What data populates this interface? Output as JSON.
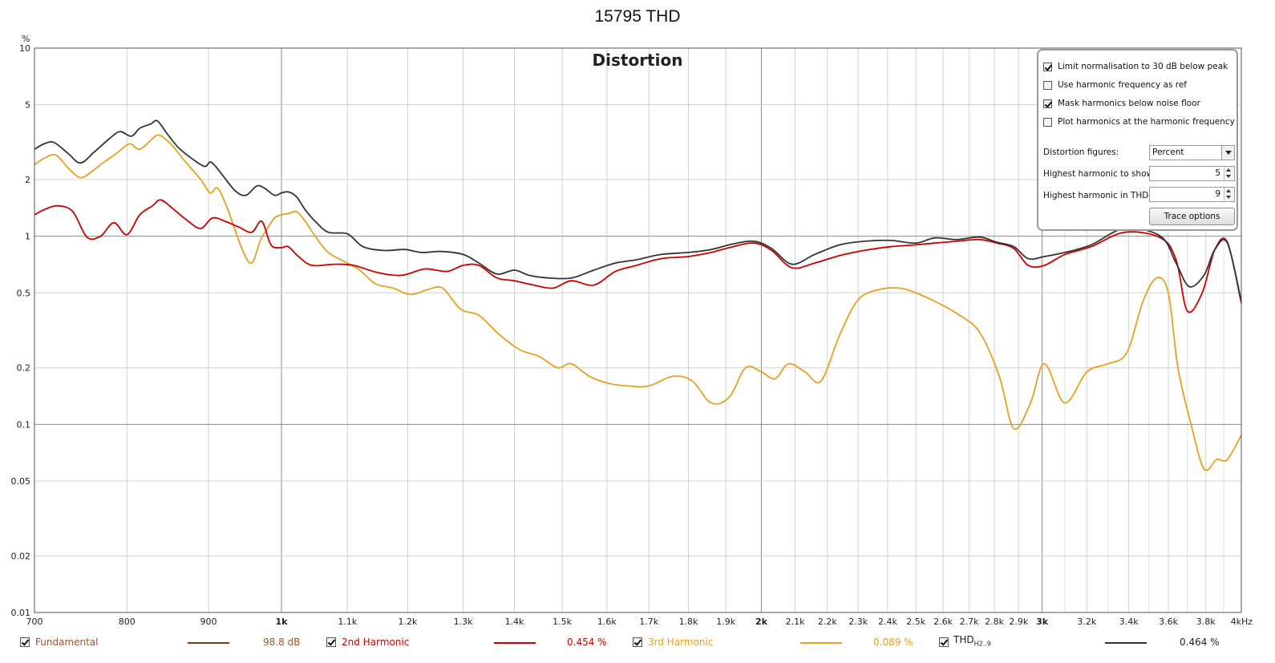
{
  "title": "15795 THD",
  "plot_title": "Distortion",
  "options": {
    "checkboxes": [
      {
        "label": "Limit normalisation to 30 dB below peak",
        "checked": true
      },
      {
        "label": "Use harmonic frequency as ref",
        "checked": false
      },
      {
        "label": "Mask harmonics below noise floor",
        "checked": true
      },
      {
        "label": "Plot harmonics at the harmonic frequency",
        "checked": false
      }
    ],
    "distortion_figures_label": "Distortion figures:",
    "distortion_figures_value": "Percent",
    "highest_harmonic_show_label": "Highest harmonic to show:",
    "highest_harmonic_show_value": "5",
    "highest_harmonic_thd_label": "Highest harmonic in THD:",
    "highest_harmonic_thd_value": "9",
    "trace_options_label": "Trace options"
  },
  "legend": [
    {
      "name": "Fundamental",
      "value": "98.8 dB",
      "color": "#7a3a1c",
      "name_color": "#a0522d",
      "checked": true
    },
    {
      "name": "2nd Harmonic",
      "value": "0.454 %",
      "color": "#cc0000",
      "name_color": "#cc0000",
      "checked": true
    },
    {
      "name": "3rd Harmonic",
      "value": "0.089 %",
      "color": "#e8a020",
      "name_color": "#e8a020",
      "checked": true
    },
    {
      "name": "THD",
      "name_sub": "H2..9",
      "value": "0.464 %",
      "color": "#333333",
      "name_color": "#222222",
      "checked": true
    }
  ],
  "chart_data": {
    "type": "line",
    "title": "Distortion",
    "x_scale": "log",
    "y_scale": "log",
    "xlim": [
      700,
      4000
    ],
    "ylim": [
      0.01,
      10
    ],
    "yunit": "%",
    "xunit": "kHz",
    "grid": true,
    "x_ticks": [
      {
        "value": 700,
        "label": "700",
        "major": false
      },
      {
        "value": 800,
        "label": "800",
        "major": false
      },
      {
        "value": 900,
        "label": "900",
        "major": false
      },
      {
        "value": 1000,
        "label": "1k",
        "major": true
      },
      {
        "value": 1100,
        "label": "1.1k",
        "major": false
      },
      {
        "value": 1200,
        "label": "1.2k",
        "major": false
      },
      {
        "value": 1300,
        "label": "1.3k",
        "major": false
      },
      {
        "value": 1400,
        "label": "1.4k",
        "major": false
      },
      {
        "value": 1500,
        "label": "1.5k",
        "major": false
      },
      {
        "value": 1600,
        "label": "1.6k",
        "major": false
      },
      {
        "value": 1700,
        "label": "1.7k",
        "major": false
      },
      {
        "value": 1800,
        "label": "1.8k",
        "major": false
      },
      {
        "value": 1900,
        "label": "1.9k",
        "major": false
      },
      {
        "value": 2000,
        "label": "2k",
        "major": true
      },
      {
        "value": 2100,
        "label": "2.1k",
        "major": false
      },
      {
        "value": 2200,
        "label": "2.2k",
        "major": false
      },
      {
        "value": 2300,
        "label": "2.3k",
        "major": false
      },
      {
        "value": 2400,
        "label": "2.4k",
        "major": false
      },
      {
        "value": 2500,
        "label": "2.5k",
        "major": false
      },
      {
        "value": 2600,
        "label": "2.6k",
        "major": false
      },
      {
        "value": 2700,
        "label": "2.7k",
        "major": false
      },
      {
        "value": 2800,
        "label": "2.8k",
        "major": false
      },
      {
        "value": 2900,
        "label": "2.9k",
        "major": false
      },
      {
        "value": 3000,
        "label": "3k",
        "major": true
      },
      {
        "value": 3200,
        "label": "3.2k",
        "major": false
      },
      {
        "value": 3400,
        "label": "3.4k",
        "major": false
      },
      {
        "value": 3600,
        "label": "3.6k",
        "major": false
      },
      {
        "value": 3800,
        "label": "3.8k",
        "major": false
      },
      {
        "value": 4000,
        "label": "4kHz",
        "major": false
      }
    ],
    "y_ticks": [
      {
        "value": 10,
        "label": "10",
        "major": true
      },
      {
        "value": 5,
        "label": "5",
        "major": false
      },
      {
        "value": 2,
        "label": "2",
        "major": false
      },
      {
        "value": 1,
        "label": "1",
        "major": true
      },
      {
        "value": 0.5,
        "label": "0.5",
        "major": false
      },
      {
        "value": 0.2,
        "label": "0.2",
        "major": false
      },
      {
        "value": 0.1,
        "label": "0.1",
        "major": true
      },
      {
        "value": 0.05,
        "label": "0.05",
        "major": false
      },
      {
        "value": 0.02,
        "label": "0.02",
        "major": false
      },
      {
        "value": 0.01,
        "label": "0.01",
        "major": true
      }
    ],
    "series": [
      {
        "name": "THD",
        "color": "#333333",
        "x": [
          700,
          710,
          720,
          735,
          748,
          763,
          780,
          792,
          805,
          815,
          828,
          836,
          848,
          862,
          878,
          895,
          903,
          915,
          935,
          950,
          965,
          976,
          990,
          1000,
          1010,
          1022,
          1035,
          1050,
          1070,
          1100,
          1125,
          1160,
          1195,
          1225,
          1260,
          1300,
          1330,
          1365,
          1400,
          1430,
          1470,
          1520,
          1570,
          1620,
          1670,
          1730,
          1800,
          1860,
          1920,
          1980,
          2030,
          2090,
          2160,
          2240,
          2320,
          2410,
          2500,
          2570,
          2650,
          2740,
          2810,
          2880,
          2940,
          3010,
          3100,
          3220,
          3380,
          3560,
          3640,
          3710,
          3790,
          3850,
          3920,
          4000
        ],
        "y": [
          2.9,
          3.1,
          3.15,
          2.75,
          2.45,
          2.8,
          3.3,
          3.6,
          3.4,
          3.75,
          3.95,
          4.1,
          3.5,
          2.95,
          2.6,
          2.35,
          2.48,
          2.2,
          1.75,
          1.65,
          1.85,
          1.8,
          1.65,
          1.7,
          1.72,
          1.62,
          1.38,
          1.2,
          1.05,
          1.03,
          0.88,
          0.84,
          0.85,
          0.82,
          0.83,
          0.8,
          0.72,
          0.63,
          0.66,
          0.62,
          0.6,
          0.6,
          0.66,
          0.72,
          0.75,
          0.8,
          0.82,
          0.85,
          0.91,
          0.94,
          0.86,
          0.71,
          0.8,
          0.9,
          0.94,
          0.95,
          0.92,
          0.98,
          0.96,
          0.99,
          0.93,
          0.88,
          0.76,
          0.78,
          0.82,
          0.9,
          1.1,
          1.0,
          0.72,
          0.54,
          0.62,
          0.85,
          0.92,
          0.45
        ]
      },
      {
        "name": "2nd Harmonic",
        "color": "#cc0000",
        "x": [
          700,
          712,
          725,
          740,
          755,
          770,
          785,
          800,
          815,
          830,
          840,
          855,
          872,
          890,
          905,
          922,
          940,
          958,
          972,
          985,
          1000,
          1010,
          1025,
          1045,
          1080,
          1110,
          1150,
          1190,
          1230,
          1270,
          1300,
          1330,
          1365,
          1400,
          1440,
          1480,
          1520,
          1570,
          1620,
          1670,
          1730,
          1800,
          1860,
          1920,
          1980,
          2030,
          2090,
          2160,
          2240,
          2320,
          2410,
          2500,
          2570,
          2650,
          2740,
          2810,
          2880,
          2940,
          3010,
          3100,
          3220,
          3380,
          3560,
          3640,
          3700,
          3780,
          3850,
          3920,
          4000
        ],
        "y": [
          1.3,
          1.4,
          1.45,
          1.35,
          0.99,
          1.0,
          1.18,
          1.02,
          1.3,
          1.45,
          1.56,
          1.4,
          1.22,
          1.1,
          1.25,
          1.2,
          1.12,
          1.05,
          1.2,
          0.9,
          0.87,
          0.88,
          0.78,
          0.7,
          0.71,
          0.7,
          0.64,
          0.62,
          0.67,
          0.65,
          0.7,
          0.7,
          0.6,
          0.58,
          0.55,
          0.53,
          0.58,
          0.55,
          0.65,
          0.7,
          0.76,
          0.78,
          0.82,
          0.88,
          0.92,
          0.84,
          0.68,
          0.72,
          0.79,
          0.84,
          0.88,
          0.9,
          0.92,
          0.94,
          0.96,
          0.92,
          0.86,
          0.7,
          0.7,
          0.8,
          0.88,
          1.05,
          0.98,
          0.75,
          0.4,
          0.5,
          0.85,
          0.93,
          0.44
        ]
      },
      {
        "name": "3rd Harmonic",
        "color": "#e8a020",
        "x": [
          700,
          710,
          722,
          735,
          748,
          760,
          775,
          790,
          803,
          815,
          830,
          838,
          852,
          870,
          890,
          902,
          912,
          925,
          945,
          958,
          970,
          980,
          990,
          1000,
          1010,
          1022,
          1035,
          1050,
          1070,
          1100,
          1120,
          1145,
          1175,
          1205,
          1235,
          1262,
          1295,
          1330,
          1370,
          1410,
          1450,
          1490,
          1520,
          1560,
          1605,
          1650,
          1700,
          1760,
          1810,
          1860,
          1910,
          1955,
          2000,
          2040,
          2080,
          2130,
          2180,
          2240,
          2300,
          2370,
          2440,
          2500,
          2570,
          2650,
          2740,
          2820,
          2880,
          2950,
          3010,
          3100,
          3200,
          3300,
          3390,
          3470,
          3540,
          3600,
          3650,
          3720,
          3790,
          3860,
          3920,
          4000
        ],
        "y": [
          2.4,
          2.6,
          2.7,
          2.3,
          2.05,
          2.2,
          2.5,
          2.8,
          3.1,
          2.9,
          3.3,
          3.45,
          3.1,
          2.5,
          2.0,
          1.7,
          1.8,
          1.4,
          0.85,
          0.72,
          0.95,
          1.1,
          1.25,
          1.3,
          1.32,
          1.35,
          1.2,
          1.0,
          0.82,
          0.72,
          0.66,
          0.56,
          0.53,
          0.49,
          0.52,
          0.53,
          0.41,
          0.38,
          0.3,
          0.25,
          0.23,
          0.2,
          0.21,
          0.18,
          0.165,
          0.16,
          0.16,
          0.18,
          0.17,
          0.13,
          0.14,
          0.2,
          0.19,
          0.175,
          0.21,
          0.19,
          0.17,
          0.3,
          0.46,
          0.52,
          0.53,
          0.5,
          0.45,
          0.39,
          0.31,
          0.18,
          0.095,
          0.13,
          0.21,
          0.13,
          0.19,
          0.21,
          0.24,
          0.45,
          0.6,
          0.5,
          0.2,
          0.1,
          0.058,
          0.065,
          0.065,
          0.088
        ]
      }
    ]
  }
}
